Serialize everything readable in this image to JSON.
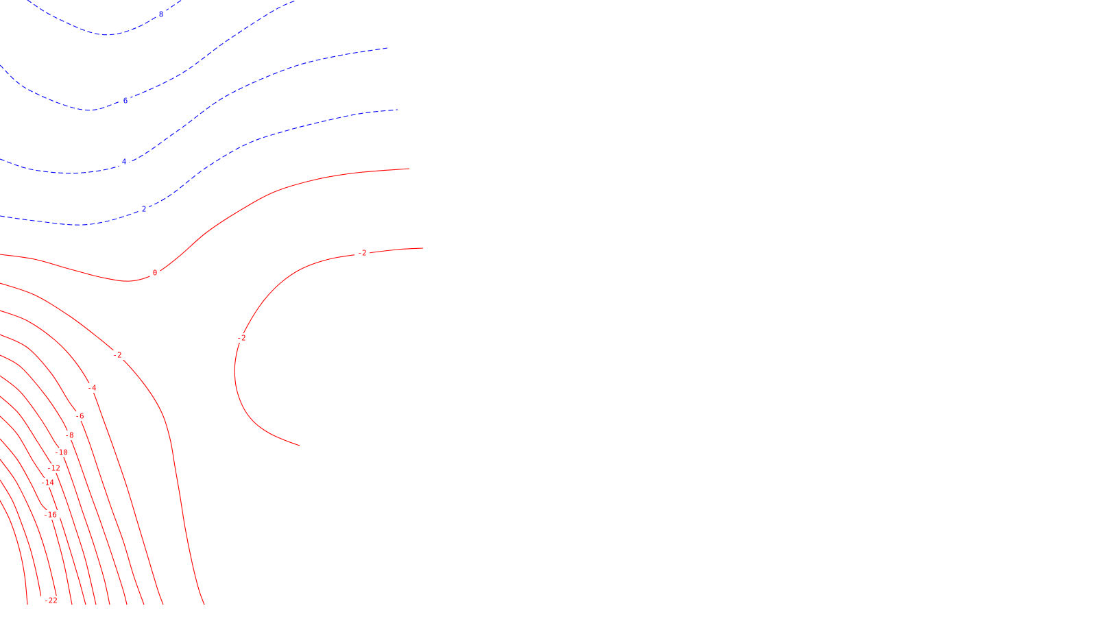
{
  "chart_data": {
    "type": "contour",
    "colors": {
      "positive": "#0000ff",
      "zero": "#ff0000",
      "negative": "#ff0000",
      "background": "#ffffff"
    },
    "line_styles": {
      "positive": "dashed",
      "nonpositive": "solid"
    },
    "contours": [
      {
        "id": "c8",
        "level": 8,
        "label": "8"
      },
      {
        "id": "c6",
        "level": 6,
        "label": "6"
      },
      {
        "id": "c4",
        "level": 4,
        "label": "4"
      },
      {
        "id": "c2",
        "level": 2,
        "label": "2"
      },
      {
        "id": "c0",
        "level": 0,
        "label": "0"
      },
      {
        "id": "cm2a",
        "level": -2,
        "label": "-2"
      },
      {
        "id": "cm2b",
        "level": -2,
        "label": "-2"
      },
      {
        "id": "cm4",
        "level": -4,
        "label": "-4"
      },
      {
        "id": "cm6",
        "level": -6,
        "label": "-6"
      },
      {
        "id": "cm8",
        "level": -8,
        "label": "-8"
      },
      {
        "id": "cm10",
        "level": -10,
        "label": "-10"
      },
      {
        "id": "cm12",
        "level": -12,
        "label": "-12"
      },
      {
        "id": "cm14",
        "level": -14,
        "label": "-14"
      },
      {
        "id": "cm16",
        "level": -16,
        "label": "-16"
      },
      {
        "id": "cm18",
        "level": -18,
        "label": ""
      },
      {
        "id": "cm20",
        "level": -20,
        "label": ""
      },
      {
        "id": "cm22",
        "level": -22,
        "label": "-22"
      }
    ]
  }
}
